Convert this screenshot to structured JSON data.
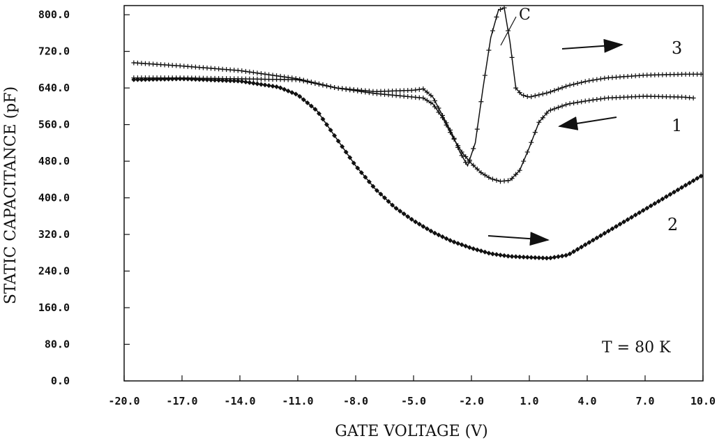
{
  "chart_data": {
    "type": "line",
    "xlabel": "GATE VOLTAGE (V)",
    "ylabel": "STATIC CAPACITANCE (pF)",
    "xlim": [
      -20.0,
      10.0
    ],
    "ylim": [
      0.0,
      820.0
    ],
    "xticks": [
      "-20.0",
      "-17.0",
      "-14.0",
      "-11.0",
      "-8.0",
      "-5.0",
      "-2.0",
      "1.0",
      "4.0",
      "7.0",
      "10.0"
    ],
    "yticks": [
      "0.0",
      "80.0",
      "160.0",
      "240.0",
      "320.0",
      "400.0",
      "480.0",
      "560.0",
      "640.0",
      "720.0",
      "800.0"
    ],
    "grid": false,
    "series": [
      {
        "name": "1",
        "marker": "plus",
        "x": [
          -19.5,
          -17,
          -14,
          -11,
          -9,
          -7,
          -5.5,
          -4.5,
          -4,
          -3.5,
          -3,
          -2.5,
          -2,
          -1.5,
          -1,
          -0.5,
          0,
          0.5,
          1,
          1.5,
          2,
          3,
          4,
          5,
          7,
          9,
          9.5
        ],
        "y": [
          662,
          662,
          660,
          658,
          640,
          628,
          622,
          618,
          605,
          575,
          535,
          500,
          475,
          455,
          442,
          436,
          438,
          460,
          510,
          565,
          590,
          605,
          612,
          618,
          622,
          620,
          618
        ]
      },
      {
        "name": "2",
        "marker": "diamond",
        "x": [
          -19.5,
          -17,
          -14,
          -12,
          -11,
          -10,
          -9,
          -8,
          -7,
          -6,
          -5,
          -4,
          -3,
          -2,
          -1,
          0,
          1,
          2,
          3,
          4,
          5,
          6,
          7,
          8,
          9,
          10
        ],
        "y": [
          658,
          660,
          655,
          642,
          625,
          590,
          530,
          470,
          420,
          380,
          350,
          325,
          305,
          290,
          278,
          272,
          270,
          268,
          275,
          300,
          325,
          350,
          375,
          400,
          425,
          450
        ]
      },
      {
        "name": "3",
        "marker": "plus",
        "x": [
          -19.5,
          -17,
          -14,
          -11,
          -9,
          -7,
          -5,
          -4.5,
          -4,
          -3.5,
          -3,
          -2.6,
          -2.2,
          -1.8,
          -1.4,
          -1,
          -0.6,
          -0.3,
          0,
          0.3,
          0.6,
          1,
          2,
          3,
          4,
          5,
          7,
          9,
          10
        ],
        "y": [
          695,
          688,
          678,
          660,
          640,
          632,
          635,
          638,
          620,
          580,
          540,
          500,
          470,
          520,
          640,
          750,
          810,
          815,
          740,
          640,
          625,
          620,
          630,
          645,
          655,
          662,
          668,
          670,
          670
        ]
      }
    ],
    "annotations": {
      "curve_labels": [
        "1",
        "2",
        "3"
      ],
      "peak_label": "C",
      "temperature": "T = 80 K"
    }
  }
}
